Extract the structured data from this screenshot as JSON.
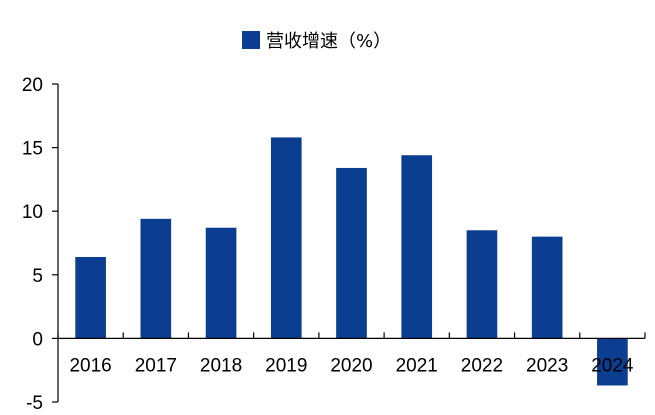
{
  "chart_data": {
    "type": "bar",
    "categories": [
      "2016",
      "2017",
      "2018",
      "2019",
      "2020",
      "2021",
      "2022",
      "2023",
      "2024"
    ],
    "series": [
      {
        "name": "营收增速（%）",
        "values": [
          6.4,
          9.4,
          8.7,
          15.8,
          13.4,
          14.4,
          8.5,
          8.0,
          -3.7
        ]
      }
    ],
    "ylim": [
      -5,
      20
    ],
    "yticks": [
      -5,
      0,
      5,
      10,
      15,
      20
    ],
    "legend_position": "top-center",
    "grid": false,
    "xlabel": "",
    "ylabel": "",
    "bar_color": "#0b3d91"
  }
}
